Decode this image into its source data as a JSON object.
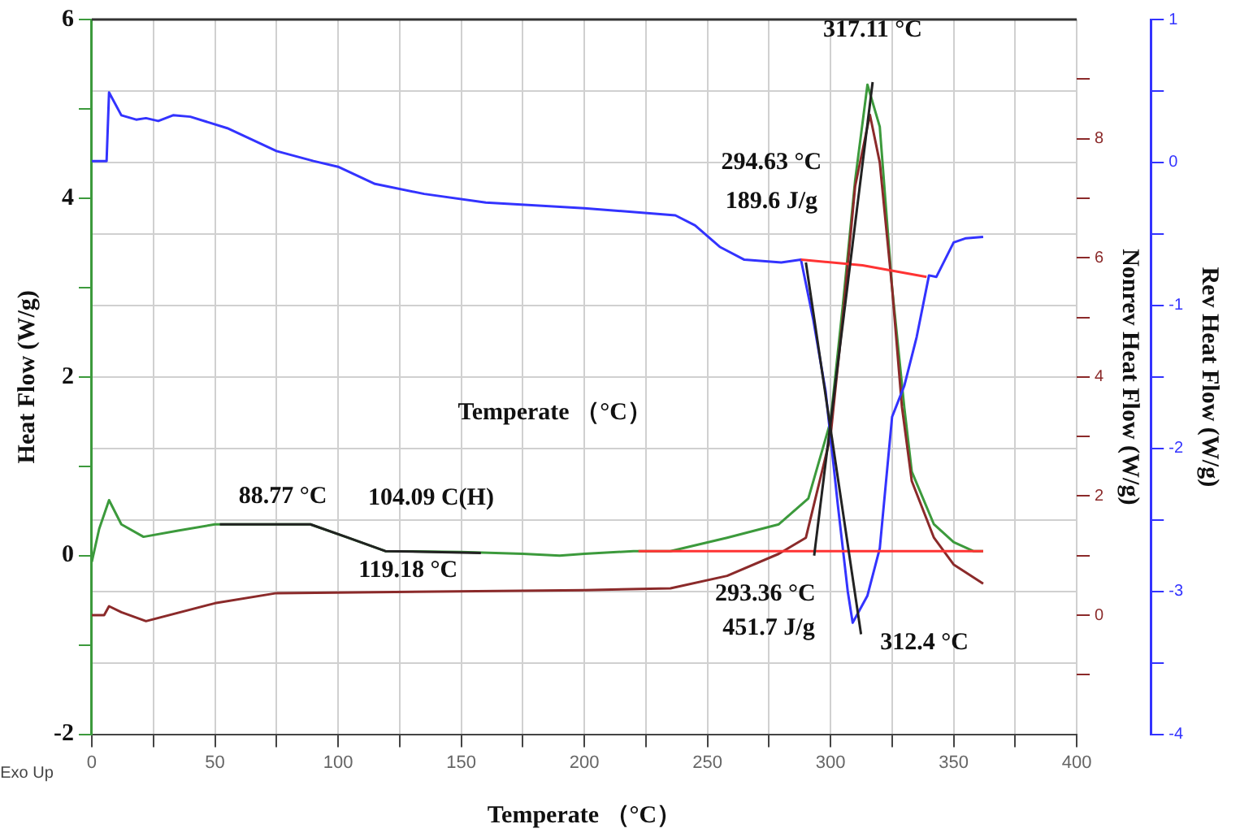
{
  "chart_data": {
    "type": "line",
    "xlabel": "Temperate （°C）",
    "ylabel": "Heat Flow (W/g)",
    "y2label": "Nonrev Heat Flow (W/g)",
    "y3label": "Rev Heat Flow (W/g)",
    "xlim": [
      0,
      400
    ],
    "xticks": [
      0,
      {
        "value": 25,
        "label": null
      },
      50,
      {
        "value": 75,
        "label": null
      },
      100,
      {
        "value": 125,
        "label": null
      },
      150,
      {
        "value": 175,
        "label": null
      },
      200,
      {
        "value": 225,
        "label": null
      },
      250,
      {
        "value": 275,
        "label": null
      },
      300,
      {
        "value": 325,
        "label": null
      },
      350,
      {
        "value": 375,
        "label": null
      },
      400
    ],
    "ylim": [
      -2,
      6
    ],
    "yticks": [
      -2,
      {
        "value": -1,
        "label": null
      },
      0,
      {
        "value": 1,
        "label": null
      },
      2,
      {
        "value": 3,
        "label": null
      },
      4,
      {
        "value": 5,
        "label": null
      },
      6
    ],
    "y2lim": [
      -2,
      10
    ],
    "y2ticks": [
      {
        "value": -1,
        "label": null
      },
      0,
      {
        "value": 1,
        "label": null
      },
      2,
      {
        "value": 3,
        "label": null
      },
      4,
      {
        "value": 5,
        "label": null
      },
      6,
      {
        "value": 7,
        "label": null
      },
      8,
      {
        "value": 9,
        "label": null
      }
    ],
    "y3lim": [
      -4,
      1
    ],
    "y3ticks": [
      -4,
      {
        "value": -3.5,
        "label": null
      },
      -3,
      {
        "value": -2.5,
        "label": null
      },
      -2,
      {
        "value": -1.5,
        "label": null
      },
      -1,
      {
        "value": -0.5,
        "label": null
      },
      0,
      {
        "value": 0.5,
        "label": null
      },
      1
    ],
    "grid": true,
    "marker": "none",
    "line_style": "solid",
    "series": [
      {
        "color": "#3c9a3c",
        "x": [
          0,
          3,
          7,
          12,
          21,
          35,
          50,
          88.77,
          104,
          119.18,
          150,
          175,
          190,
          200,
          220,
          235,
          258,
          279,
          291,
          300,
          305,
          310,
          315,
          320,
          325,
          330,
          333,
          342,
          350,
          358,
          362
        ],
        "values": [
          -0.07,
          0.3,
          0.62,
          0.35,
          0.21,
          0.28,
          0.35,
          0.35,
          0.2,
          0.05,
          0.04,
          0.02,
          0.0,
          0.02,
          0.05,
          0.05,
          0.2,
          0.35,
          0.64,
          1.5,
          2.8,
          4.2,
          5.27,
          4.8,
          3.0,
          1.65,
          0.94,
          0.35,
          0.15,
          0.05,
          0.05
        ]
      },
      {
        "color": "#8b2a2a",
        "axis": "y2",
        "x": [
          0,
          5,
          7,
          12,
          22,
          50,
          75,
          200,
          235,
          258,
          279,
          290,
          300,
          305,
          310,
          316,
          320,
          325,
          329,
          333,
          342,
          350,
          362
        ],
        "values": [
          0.0,
          0.0,
          0.15,
          0.05,
          -0.1,
          0.2,
          0.37,
          0.42,
          0.45,
          0.66,
          1.03,
          1.3,
          3.0,
          5.0,
          7.2,
          8.4,
          7.6,
          5.5,
          3.5,
          2.25,
          1.3,
          0.85,
          0.53
        ]
      },
      {
        "color": "#3333ff",
        "axis": "y3",
        "x": [
          0,
          6,
          7,
          12,
          18,
          22,
          27,
          33,
          40,
          55,
          75,
          90,
          100,
          115,
          135,
          160,
          200,
          237,
          245,
          255,
          265,
          280,
          288,
          293,
          298,
          303,
          307,
          309,
          315,
          320,
          325,
          330,
          335,
          340,
          343,
          350,
          355,
          362
        ],
        "values": [
          0.01,
          0.01,
          0.49,
          0.33,
          0.3,
          0.31,
          0.29,
          0.33,
          0.32,
          0.24,
          0.08,
          0.01,
          -0.03,
          -0.15,
          -0.22,
          -0.28,
          -0.32,
          -0.37,
          -0.44,
          -0.59,
          -0.68,
          -0.7,
          -0.68,
          -1.1,
          -1.6,
          -2.4,
          -3.0,
          -3.22,
          -3.03,
          -2.7,
          -1.78,
          -1.56,
          -1.22,
          -0.79,
          -0.8,
          -0.56,
          -0.53,
          -0.52
        ]
      },
      {
        "color": "#ff3333",
        "x": [
          222,
          362
        ],
        "values": [
          0.05,
          0.05
        ]
      },
      {
        "color": "#ff3333",
        "axis": "y3",
        "x": [
          288,
          313,
          339
        ],
        "values": [
          -0.68,
          -0.72,
          -0.8
        ]
      },
      {
        "color": "#222222",
        "x": [
          52,
          88.77,
          104.09,
          119.18,
          158
        ],
        "values": [
          0.35,
          0.35,
          0.2,
          0.05,
          0.03
        ]
      },
      {
        "color": "#222222",
        "x": [
          293.36,
          317.11
        ],
        "values": [
          0.0,
          5.3
        ]
      },
      {
        "color": "#222222",
        "axis": "y3",
        "x": [
          290,
          312.4
        ],
        "values": [
          -0.7,
          -3.3
        ]
      }
    ],
    "annotations": [
      "Temperate （°C）",
      "Exo Up",
      {
        "text": "317.11 °C",
        "x": 317.11,
        "y": 5.3
      },
      "294.63 °C",
      "189.6 J/g",
      {
        "text": "88.77 °C",
        "x": 88.77,
        "y": 0.35
      },
      {
        "text": "104.09 C(H)",
        "x": 104.09,
        "y": 0.2
      },
      {
        "text": "119.18 °C",
        "x": 119.18,
        "y": 0.05
      },
      {
        "text": "293.36 °C",
        "x": 293.36,
        "y": 0
      },
      {
        "text": "451.7 J/g",
        "x": 293.36,
        "y": 0
      },
      {
        "text": "312.4 °C",
        "x": 312.4,
        "y": -0.83
      }
    ]
  }
}
